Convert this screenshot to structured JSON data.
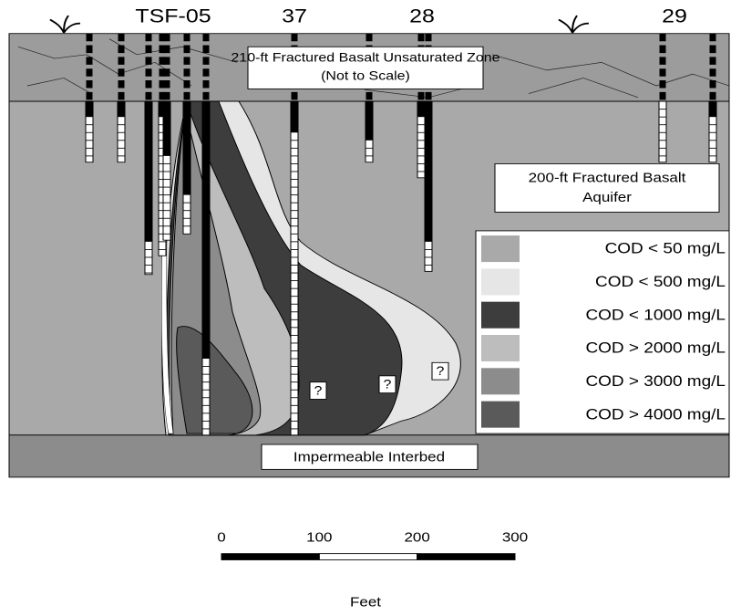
{
  "wells": [
    {
      "label": "TSF-05"
    },
    {
      "label": "37"
    },
    {
      "label": "28"
    },
    {
      "label": "29"
    }
  ],
  "unsaturated_zone": {
    "lines": [
      "210-ft Fractured Basalt Unsaturated Zone",
      "(Not to Scale)"
    ]
  },
  "aquifer": {
    "lines": [
      "200-ft Fractured Basalt",
      "Aquifer"
    ]
  },
  "legend": [
    {
      "label": "COD < 50 mg/L",
      "color": "#a9a9a9"
    },
    {
      "label": "COD < 500 mg/L",
      "color": "#e6e6e6"
    },
    {
      "label": "COD < 1000 mg/L",
      "color": "#3d3d3d"
    },
    {
      "label": "COD > 2000 mg/L",
      "color": "#bdbdbd"
    },
    {
      "label": "COD > 3000 mg/L",
      "color": "#8c8c8c"
    },
    {
      "label": "COD > 4000 mg/L",
      "color": "#5a5a5a"
    }
  ],
  "question_marks": [
    "?",
    "?",
    "?"
  ],
  "interbed": {
    "label": "Impermeable Interbed"
  },
  "scale_bar": {
    "ticks": [
      0,
      100,
      200,
      300
    ],
    "unit": "Feet"
  }
}
